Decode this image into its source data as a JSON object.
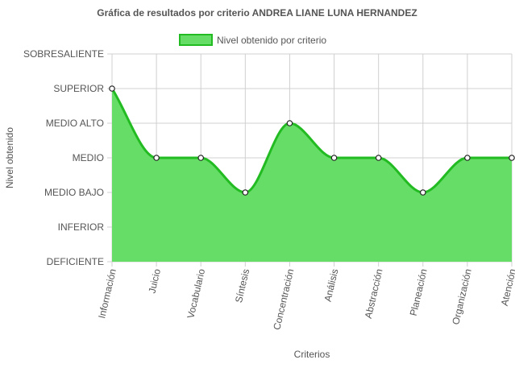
{
  "chart_data": {
    "type": "area",
    "title": "Gráfica de resultados por criterio ANDREA LIANE LUNA HERNANDEZ",
    "xlabel": "Criterios",
    "ylabel": "Nivel obtenido",
    "y_levels": [
      "DEFICIENTE",
      "INFERIOR",
      "MEDIO BAJO",
      "MEDIO",
      "MEDIO ALTO",
      "SUPERIOR",
      "SOBRESALIENTE"
    ],
    "ylim": [
      0,
      6
    ],
    "categories": [
      "Información",
      "Juicio",
      "Vocabulario",
      "Síntesis",
      "Concentración",
      "Análisis",
      "Abstracción",
      "Planeación",
      "Organización",
      "Atención"
    ],
    "series": [
      {
        "name": "Nivel obtenido por criterio",
        "values": [
          5,
          3,
          3,
          2,
          4,
          3,
          3,
          2,
          3,
          3
        ],
        "line_color": "#22bb22",
        "fill_color": "#66dd66"
      }
    ],
    "legend_position": "top",
    "grid": true
  }
}
